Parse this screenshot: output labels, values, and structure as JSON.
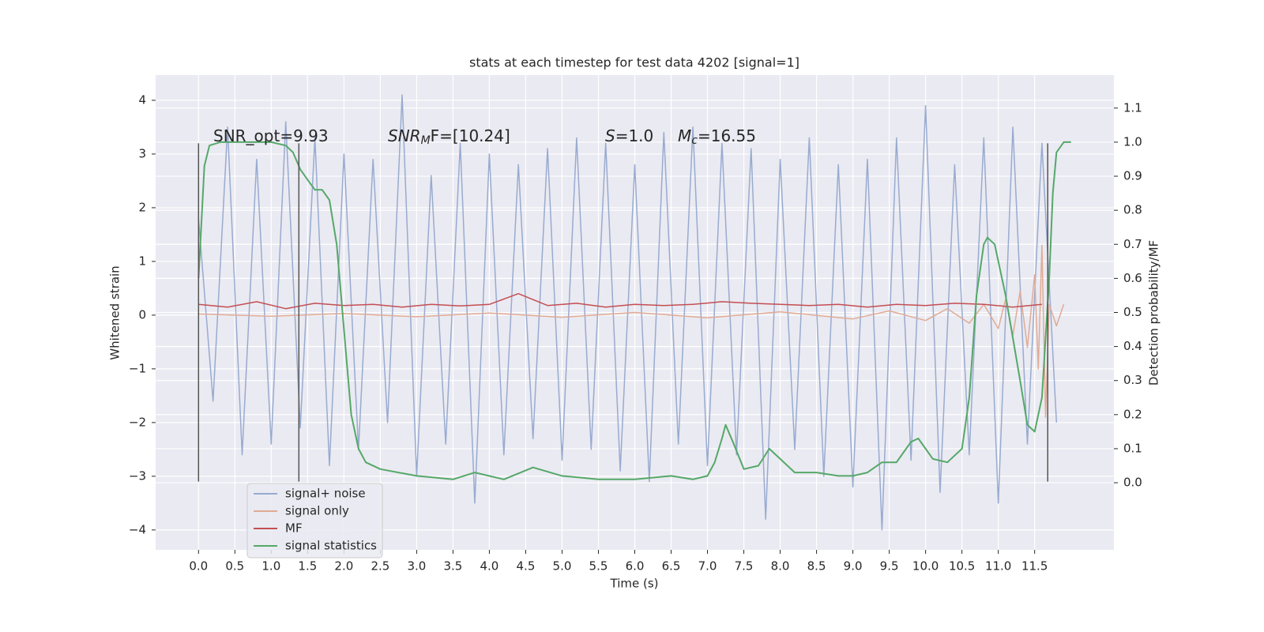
{
  "chart_data": {
    "type": "line",
    "title": "stats at each timestep for test data 4202 [signal=1]",
    "xlabel": "Time (s)",
    "ylabel": "Whitened strain",
    "y2label": "Detection probability/MF",
    "annotations": [
      {
        "main": "SNR_opt=9.93"
      },
      {
        "main": "SNR",
        "sub": "M",
        "rest": "F=[10.24]"
      },
      {
        "main": "S",
        "rest": "=1.0"
      },
      {
        "main": "M",
        "sub": "c",
        "rest": "=16.55"
      }
    ],
    "vlines": [
      0,
      1.38,
      11.68
    ],
    "vline_range": [
      -3.1,
      3.2
    ],
    "vline_color": "#555555",
    "xlim": [
      -0.59,
      12.59
    ],
    "ylim": [
      -4.37,
      4.47
    ],
    "y2lim": [
      -0.197,
      1.197
    ],
    "xticks": [
      {
        "value": 0,
        "label": "0.0"
      },
      0.5,
      {
        "value": 1,
        "label": "1.0"
      },
      1.5,
      {
        "value": 2,
        "label": "2.0"
      },
      2.5,
      {
        "value": 3,
        "label": "3.0"
      },
      3.5,
      {
        "value": 4,
        "label": "4.0"
      },
      4.5,
      {
        "value": 5,
        "label": "5.0"
      },
      5.5,
      {
        "value": 6,
        "label": "6.0"
      },
      6.5,
      {
        "value": 7,
        "label": "7.0"
      },
      7.5,
      {
        "value": 8,
        "label": "8.0"
      },
      8.5,
      {
        "value": 9,
        "label": "9.0"
      },
      9.5,
      {
        "value": 10,
        "label": "10.0"
      },
      10.5,
      {
        "value": 11,
        "label": "11.0"
      },
      11.5
    ],
    "yticks": [
      {
        "value": -4,
        "label": "−4"
      },
      {
        "value": -3,
        "label": "−3"
      },
      {
        "value": -2,
        "label": "−2"
      },
      {
        "value": -1,
        "label": "−1"
      },
      0,
      1,
      2,
      3,
      4
    ],
    "y2ticks": [
      {
        "value": 0,
        "label": "0.0"
      },
      0.1,
      0.2,
      0.3,
      0.4,
      0.5,
      0.6,
      0.7,
      0.8,
      0.9,
      {
        "value": 1,
        "label": "1.0"
      },
      1.1
    ],
    "grid": true,
    "legend": "lower left",
    "series": [
      {
        "name": "signal+ noise",
        "color": "#98abd0",
        "x": [
          0,
          0.2,
          0.4,
          0.6,
          0.8,
          1,
          1.2,
          1.4,
          1.6,
          1.8,
          2,
          2.2,
          2.4,
          2.6,
          2.8,
          3,
          3.2,
          3.4,
          3.6,
          3.8,
          4,
          4.2,
          4.4,
          4.6,
          4.8,
          5,
          5.2,
          5.4,
          5.6,
          5.8,
          6,
          6.2,
          6.4,
          6.6,
          6.8,
          7,
          7.2,
          7.4,
          7.6,
          7.8,
          8,
          8.2,
          8.4,
          8.6,
          8.8,
          9,
          9.2,
          9.4,
          9.6,
          9.8,
          10,
          10.2,
          10.4,
          10.6,
          10.8,
          11,
          11.2,
          11.4,
          11.6,
          11.8
        ],
        "values": [
          1.8,
          -1.6,
          3.5,
          -2.6,
          2.9,
          -2.4,
          3.6,
          -2.1,
          3.3,
          -2.8,
          3.0,
          -2.5,
          2.9,
          -2.0,
          4.1,
          -3.0,
          2.6,
          -2.4,
          3.2,
          -3.5,
          3.0,
          -2.6,
          2.8,
          -2.3,
          3.1,
          -2.7,
          3.3,
          -2.5,
          3.2,
          -2.9,
          2.8,
          -3.1,
          3.4,
          -2.4,
          3.5,
          -2.8,
          3.2,
          -2.6,
          3.1,
          -3.8,
          2.9,
          -2.5,
          3.3,
          -3.0,
          2.8,
          -3.2,
          2.9,
          -4.0,
          3.3,
          -2.7,
          3.9,
          -3.3,
          2.8,
          -2.6,
          3.3,
          -3.5,
          3.5,
          -2.4,
          3.2,
          -2.0
        ]
      },
      {
        "name": "signal only",
        "color": "#e0ab95",
        "x": [
          0,
          1,
          2,
          3,
          4,
          5,
          6,
          7,
          8,
          9,
          9.5,
          10,
          10.3,
          10.6,
          10.8,
          11,
          11.1,
          11.2,
          11.3,
          11.4,
          11.5,
          11.55,
          11.6,
          11.65,
          11.7,
          11.8,
          11.9
        ],
        "values": [
          0.02,
          -0.02,
          0.03,
          -0.03,
          0.04,
          -0.04,
          0.05,
          -0.05,
          0.06,
          -0.07,
          0.08,
          -0.1,
          0.12,
          -0.15,
          0.2,
          -0.25,
          0.3,
          -0.38,
          0.45,
          -0.6,
          0.75,
          -1.0,
          1.3,
          -1.9,
          0.2,
          -0.2,
          0.2
        ]
      },
      {
        "name": "MF",
        "color": "#c44e52",
        "x": [
          0,
          0.4,
          0.8,
          1.2,
          1.6,
          2,
          2.4,
          2.8,
          3.2,
          3.6,
          4,
          4.4,
          4.8,
          5.2,
          5.6,
          6,
          6.4,
          6.8,
          7.2,
          7.6,
          8,
          8.4,
          8.8,
          9.2,
          9.6,
          10,
          10.4,
          10.8,
          11.2,
          11.6
        ],
        "values": [
          0.2,
          0.15,
          0.25,
          0.12,
          0.22,
          0.18,
          0.2,
          0.15,
          0.2,
          0.17,
          0.2,
          0.4,
          0.18,
          0.22,
          0.15,
          0.2,
          0.18,
          0.2,
          0.25,
          0.22,
          0.2,
          0.18,
          0.2,
          0.15,
          0.2,
          0.18,
          0.22,
          0.2,
          0.15,
          0.2
        ]
      },
      {
        "name": "signal statistics",
        "color": "#55a868",
        "axis": "y2",
        "x": [
          0,
          0.08,
          0.15,
          0.3,
          0.5,
          1.0,
          1.2,
          1.3,
          1.4,
          1.5,
          1.6,
          1.7,
          1.8,
          1.9,
          2.0,
          2.1,
          2.2,
          2.3,
          2.5,
          3.0,
          3.5,
          3.8,
          4.2,
          4.6,
          5.0,
          5.5,
          6.0,
          6.5,
          6.8,
          7.0,
          7.1,
          7.2,
          7.25,
          7.35,
          7.5,
          7.7,
          7.85,
          8.0,
          8.2,
          8.5,
          8.8,
          9.0,
          9.2,
          9.4,
          9.6,
          9.8,
          9.9,
          10.1,
          10.3,
          10.5,
          10.6,
          10.7,
          10.8,
          10.85,
          10.95,
          11.1,
          11.3,
          11.4,
          11.5,
          11.6,
          11.7,
          11.75,
          11.8,
          11.9,
          12.0
        ],
        "values": [
          0.6,
          0.93,
          0.99,
          1.0,
          1.0,
          1.0,
          0.99,
          0.97,
          0.92,
          0.89,
          0.86,
          0.86,
          0.83,
          0.7,
          0.45,
          0.2,
          0.1,
          0.06,
          0.04,
          0.02,
          0.01,
          0.03,
          0.01,
          0.045,
          0.02,
          0.01,
          0.01,
          0.02,
          0.01,
          0.02,
          0.06,
          0.13,
          0.17,
          0.12,
          0.04,
          0.05,
          0.1,
          0.07,
          0.03,
          0.03,
          0.02,
          0.02,
          0.03,
          0.06,
          0.06,
          0.12,
          0.13,
          0.07,
          0.06,
          0.1,
          0.25,
          0.55,
          0.7,
          0.72,
          0.7,
          0.55,
          0.3,
          0.17,
          0.15,
          0.25,
          0.6,
          0.85,
          0.97,
          1.0,
          1.0
        ]
      }
    ]
  }
}
